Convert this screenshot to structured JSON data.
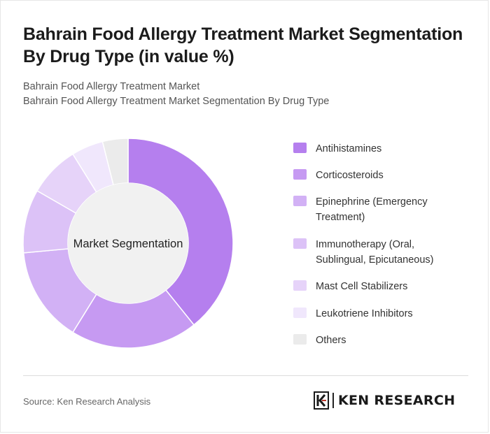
{
  "header": {
    "title": "Bahrain Food Allergy Treatment Market Segmentation By Drug Type (in value %)",
    "subtitle_line1": "Bahrain Food Allergy Treatment Market",
    "subtitle_line2": "Bahrain Food Allergy Treatment Market Segmentation By Drug Type"
  },
  "chart_data": {
    "type": "pie",
    "variant": "donut",
    "center_label": "Market Segmentation",
    "categories": [
      "Antihistamines",
      "Corticosteroids",
      "Epinephrine (Emergency Treatment)",
      "Immunotherapy (Oral, Sublingual, Epicutaneous)",
      "Mast Cell Stabilizers",
      "Leukotriene Inhibitors",
      "Others"
    ],
    "values": [
      40,
      20,
      15,
      10,
      8,
      5,
      4
    ],
    "colors": [
      "#b57fee",
      "#c69af2",
      "#d2b1f5",
      "#dcc2f7",
      "#e6d3f9",
      "#f0e7fc",
      "#ebebeb"
    ],
    "legend_position": "right"
  },
  "footer": {
    "source": "Source: Ken Research Analysis",
    "logo_text": "KEN RESEARCH"
  }
}
